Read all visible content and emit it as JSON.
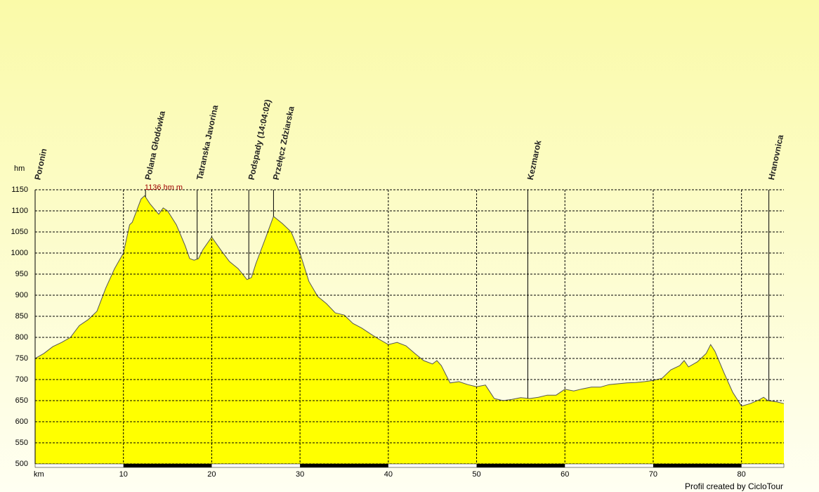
{
  "chart_data": {
    "type": "area",
    "ylabel": "hm",
    "xlabel": "km",
    "footer": "Profil created by CicloTour",
    "color": "#ffff00",
    "line_color": "#555555",
    "grid": true,
    "xlim": [
      0,
      84.8
    ],
    "ylim": [
      500,
      1150
    ],
    "xticks": [
      10,
      20,
      30,
      40,
      50,
      60,
      70,
      80
    ],
    "yticks": [
      500,
      550,
      600,
      650,
      700,
      750,
      800,
      850,
      900,
      950,
      1000,
      1050,
      1100,
      1150
    ],
    "x": [
      0,
      1,
      2,
      3,
      4,
      5,
      6,
      7,
      8,
      9,
      10,
      10.7,
      11,
      12,
      12.4,
      13,
      14,
      14.5,
      15,
      16,
      17,
      17.5,
      18,
      18.5,
      19,
      20,
      21,
      22,
      23,
      24,
      24.5,
      25,
      26,
      27,
      28,
      29,
      30,
      31,
      32,
      33,
      34,
      35,
      36,
      37,
      38,
      39,
      40,
      41,
      42,
      43,
      44,
      45,
      45.5,
      46,
      47,
      48,
      49,
      50,
      51,
      52,
      53,
      54,
      55,
      56,
      57,
      58,
      59,
      60,
      61,
      62,
      63,
      64,
      65,
      66,
      67,
      68,
      69,
      70,
      71,
      72,
      73,
      73.5,
      74,
      75,
      76,
      76.5,
      77,
      78,
      79,
      80,
      81,
      82,
      82.5,
      83,
      84,
      84.8
    ],
    "values": [
      750,
      762,
      778,
      788,
      800,
      828,
      842,
      862,
      917,
      963,
      1000,
      1067,
      1073,
      1128,
      1136,
      1117,
      1092,
      1107,
      1100,
      1067,
      1017,
      987,
      983,
      987,
      1008,
      1038,
      1008,
      980,
      963,
      937,
      942,
      975,
      1030,
      1087,
      1070,
      1050,
      1000,
      933,
      897,
      880,
      858,
      853,
      833,
      822,
      808,
      795,
      783,
      788,
      780,
      762,
      745,
      737,
      745,
      733,
      692,
      695,
      688,
      683,
      687,
      655,
      650,
      653,
      657,
      655,
      658,
      663,
      663,
      677,
      673,
      678,
      682,
      682,
      688,
      690,
      692,
      693,
      695,
      698,
      703,
      723,
      733,
      745,
      730,
      742,
      762,
      783,
      767,
      717,
      670,
      637,
      643,
      652,
      658,
      650,
      647,
      643
    ],
    "annotations": [
      {
        "text": "1136 hm m",
        "x": 12.4
      }
    ],
    "waypoints": [
      {
        "label": "Poronin",
        "x": 0
      },
      {
        "label": "Polana Głodówka",
        "x": 12.5
      },
      {
        "label": "Tatranska Javorina",
        "x": 18.35
      },
      {
        "label": "Podspady (14:04:02)",
        "x": 24.2
      },
      {
        "label": "Przełęcz Zdziarska",
        "x": 27.0
      },
      {
        "label": "Kezmarok",
        "x": 55.8
      },
      {
        "label": "Hranovnica",
        "x": 83.1
      }
    ]
  }
}
